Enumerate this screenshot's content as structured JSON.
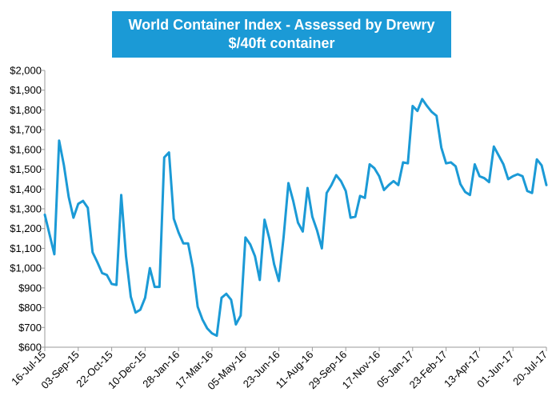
{
  "chart_data": {
    "type": "line",
    "title": "World Container Index - Assessed by Drewry",
    "subtitle": "$/40ft container",
    "xlabel": "",
    "ylabel": "",
    "ylim": [
      600,
      2000
    ],
    "y_ticks": [
      "$2,000",
      "$1,900",
      "$1,800",
      "$1,700",
      "$1,600",
      "$1,500",
      "$1,400",
      "$1,300",
      "$1,200",
      "$1,100",
      "$1,000",
      "$900",
      "$800",
      "$700",
      "$600"
    ],
    "x_tick_labels": [
      "16-Jul-15",
      "03-Sep-15",
      "22-Oct-15",
      "10-Dec-15",
      "28-Jan-16",
      "17-Mar-16",
      "05-May-16",
      "23-Jun-16",
      "11-Aug-16",
      "29-Sep-16",
      "17-Nov-16",
      "05-Jan-17",
      "23-Feb-17",
      "13-Apr-17",
      "01-Jun-17",
      "20-Jul-17"
    ],
    "series": [
      {
        "name": "World Container Index",
        "color": "#1b9ad6",
        "values": [
          1270,
          1170,
          1070,
          1645,
          1520,
          1360,
          1255,
          1325,
          1340,
          1305,
          1080,
          1030,
          975,
          965,
          920,
          915,
          1370,
          1060,
          855,
          775,
          790,
          850,
          1000,
          905,
          905,
          1560,
          1585,
          1250,
          1180,
          1125,
          1125,
          1000,
          805,
          740,
          695,
          670,
          658,
          850,
          870,
          840,
          715,
          760,
          1155,
          1120,
          1060,
          940,
          1245,
          1150,
          1020,
          935,
          1160,
          1430,
          1340,
          1230,
          1185,
          1405,
          1260,
          1190,
          1100,
          1380,
          1420,
          1470,
          1440,
          1390,
          1255,
          1260,
          1365,
          1355,
          1525,
          1505,
          1465,
          1395,
          1420,
          1440,
          1420,
          1535,
          1530,
          1820,
          1795,
          1855,
          1820,
          1790,
          1770,
          1610,
          1530,
          1535,
          1515,
          1425,
          1385,
          1370,
          1525,
          1465,
          1455,
          1435,
          1615,
          1570,
          1525,
          1450,
          1465,
          1475,
          1465,
          1390,
          1380,
          1550,
          1520,
          1420
        ]
      }
    ]
  }
}
